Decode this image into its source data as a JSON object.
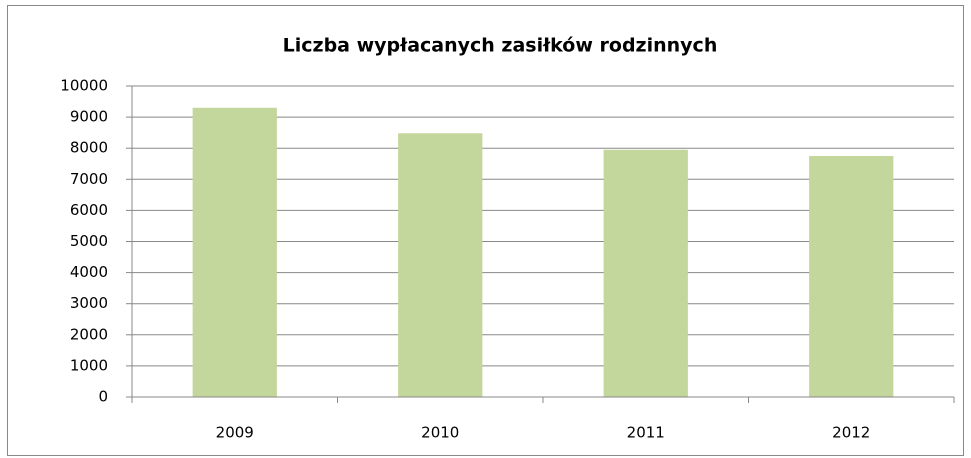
{
  "chart_data": {
    "type": "bar",
    "title": "Liczba wypłacanych zasiłków rodzinnych",
    "categories": [
      "2009",
      "2010",
      "2011",
      "2012"
    ],
    "values": [
      9300,
      8480,
      7950,
      7750
    ],
    "color": "#c3d69b",
    "ylim": [
      0,
      10000
    ],
    "yticks": [
      0,
      1000,
      2000,
      3000,
      4000,
      5000,
      6000,
      7000,
      8000,
      9000,
      10000
    ],
    "grid": true
  }
}
